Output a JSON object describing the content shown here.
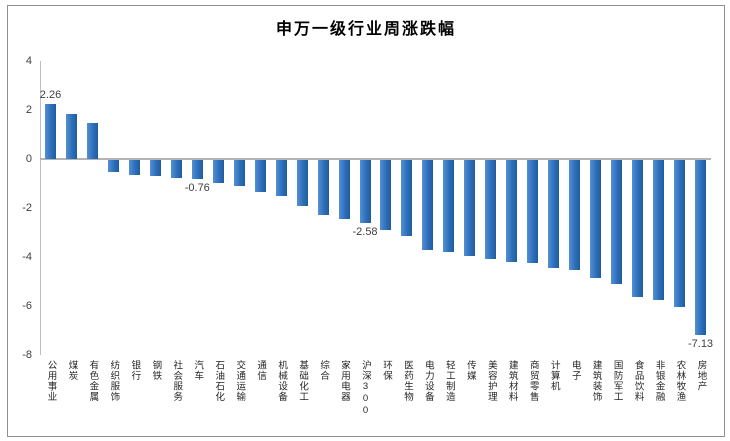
{
  "chart_data": {
    "type": "bar",
    "title": "申万一级行业周涨跌幅",
    "categories": [
      "公用事业",
      "煤炭",
      "有色金属",
      "纺织服饰",
      "银行",
      "钢铁",
      "社会服务",
      "汽车",
      "石油石化",
      "交通运输",
      "通信",
      "机械设备",
      "基础化工",
      "综合",
      "家用电器",
      "沪深300",
      "环保",
      "医药生物",
      "电力设备",
      "轻工制造",
      "传媒",
      "美容护理",
      "建筑材料",
      "商贸零售",
      "计算机",
      "电子",
      "建筑装饰",
      "国防军工",
      "食品饮料",
      "非银金融",
      "农林牧渔",
      "房地产"
    ],
    "values": [
      2.26,
      1.82,
      1.45,
      -0.5,
      -0.62,
      -0.66,
      -0.72,
      -0.76,
      -0.95,
      -1.05,
      -1.31,
      -1.47,
      -1.87,
      -2.24,
      -2.4,
      -2.58,
      -2.85,
      -3.1,
      -3.67,
      -3.75,
      -3.9,
      -4.05,
      -4.15,
      -4.2,
      -4.4,
      -4.47,
      -4.8,
      -5.08,
      -5.6,
      -5.7,
      -6.0,
      -7.13
    ],
    "point_labels": [
      "2.26",
      "",
      "",
      "",
      "",
      "",
      "",
      "-0.76",
      "",
      "",
      "",
      "",
      "",
      "",
      "",
      "-2.58",
      "",
      "",
      "",
      "",
      "",
      "",
      "",
      "",
      "",
      "",
      "",
      "",
      "",
      "",
      "",
      "-7.13"
    ],
    "xlabel": "",
    "ylabel": "",
    "ylim": [
      -8,
      4
    ],
    "y_ticks": [
      4,
      2,
      0,
      -2,
      -4,
      -6,
      -8
    ],
    "grid": false,
    "legend_position": "none",
    "colors": {
      "bar_light": "#5390d5",
      "bar": "#2e6fba",
      "bar_dark": "#1f5c9e",
      "axis": "#bfbfbf",
      "zero_line": "#b3b3b3",
      "tick_text": "#3f3f3f",
      "category_text": "#262626",
      "title_text": "#000000",
      "frame_border": "#8f8f8f"
    }
  }
}
